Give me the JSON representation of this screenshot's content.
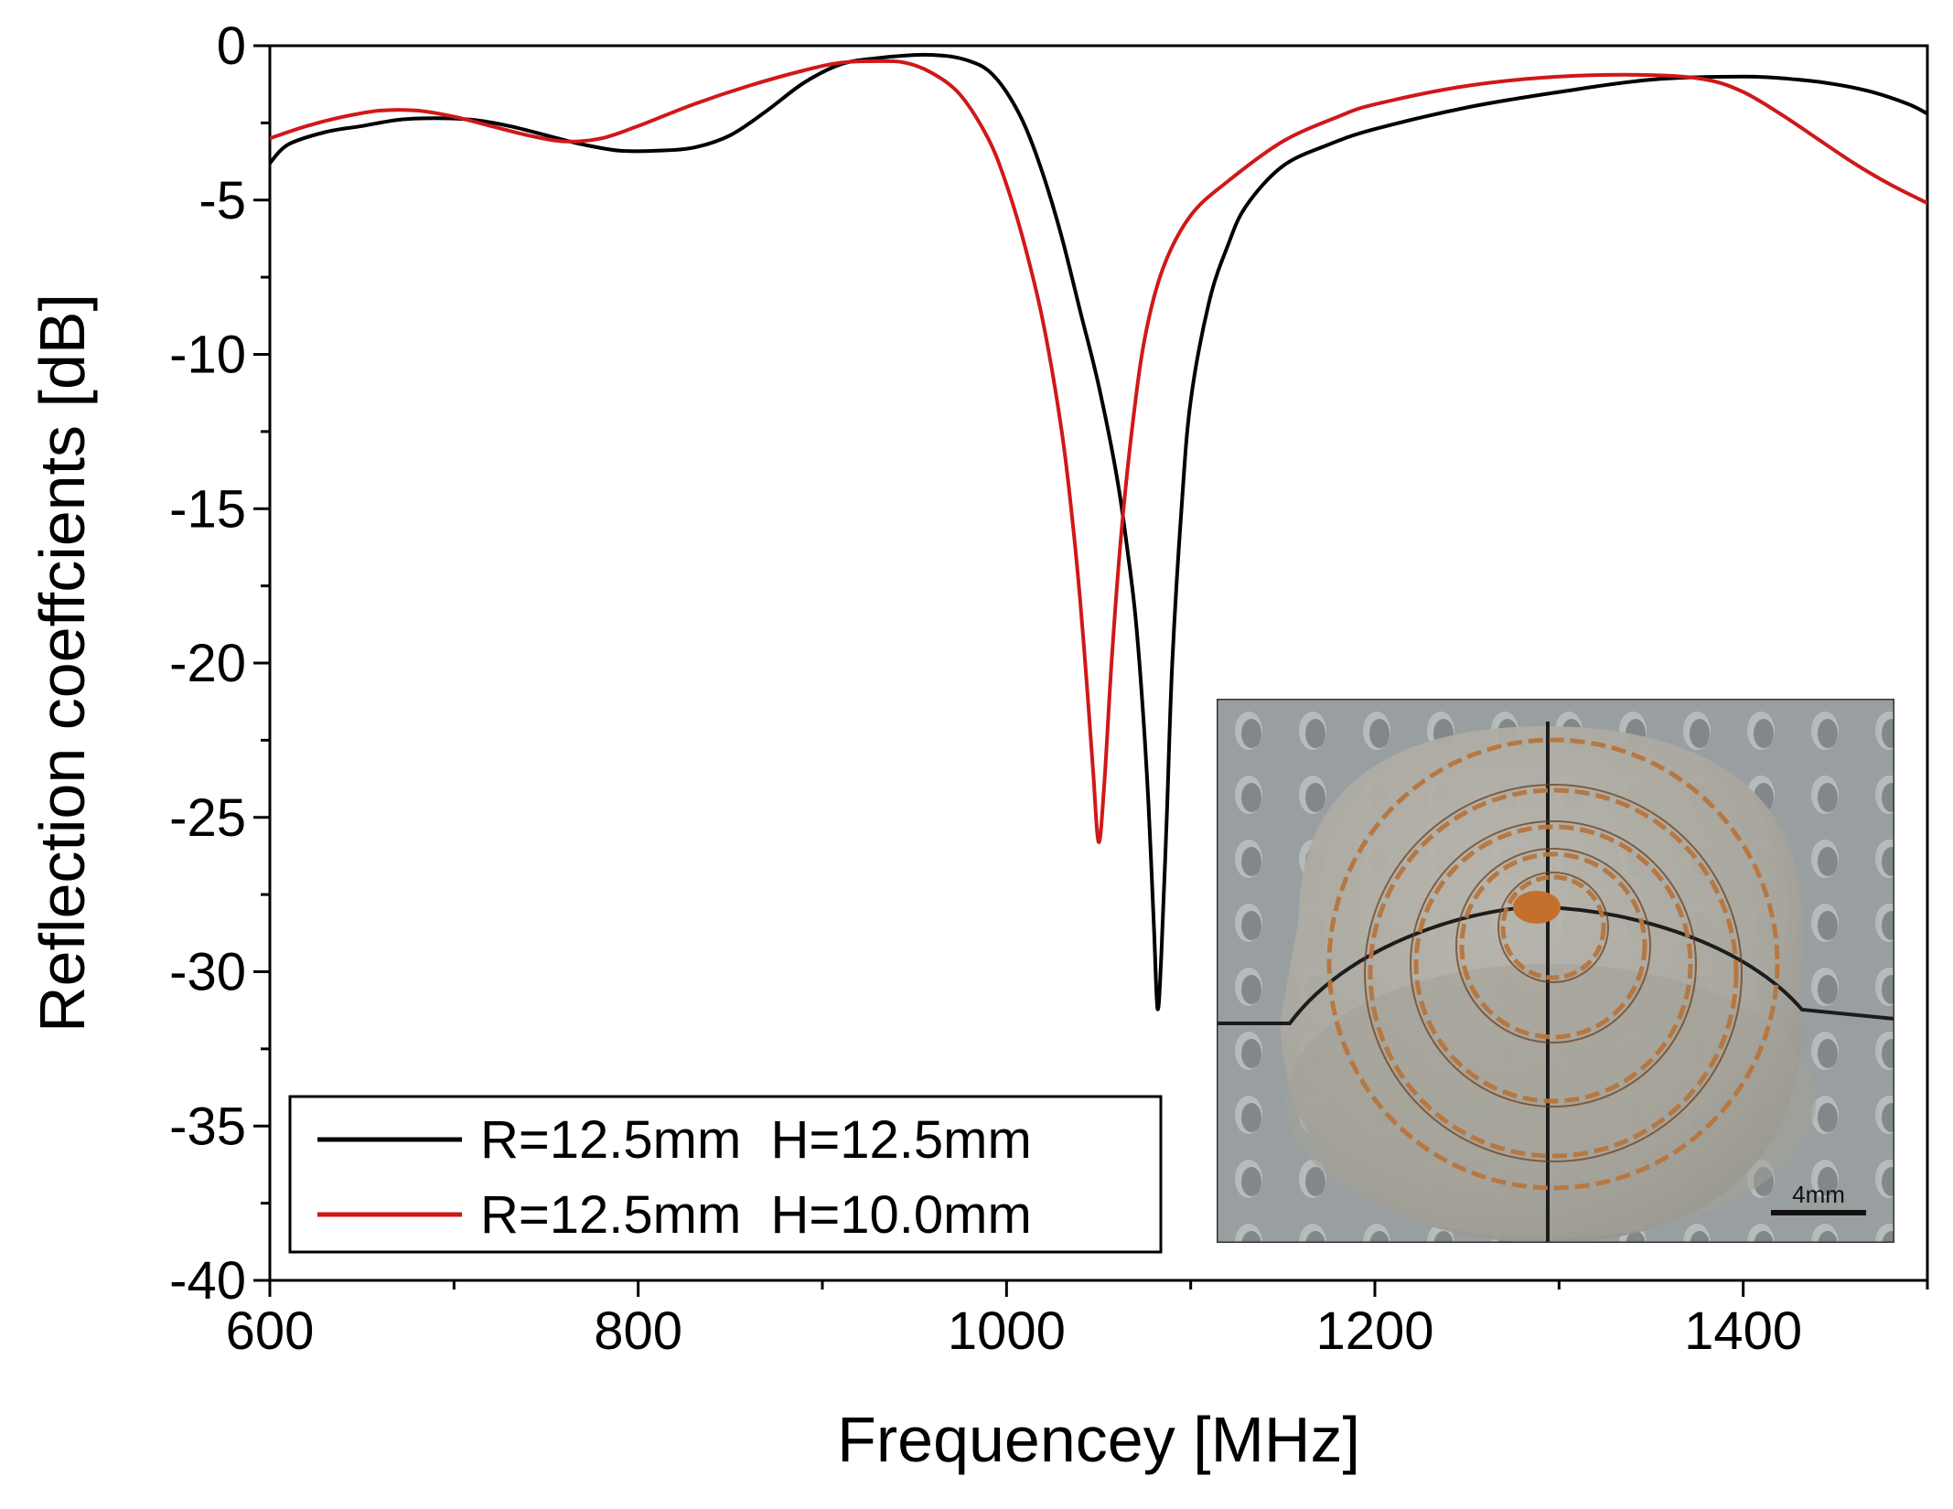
{
  "chart_data": {
    "type": "line",
    "title": "",
    "xlabel": "Frequencey [MHz]",
    "ylabel": "Reflection coeffcients [dB]",
    "xlim": [
      600,
      1500
    ],
    "ylim": [
      -40,
      0
    ],
    "xticks": [
      600,
      800,
      1000,
      1200,
      1400
    ],
    "yticks": [
      0,
      -5,
      -10,
      -15,
      -20,
      -25,
      -30,
      -35,
      -40
    ],
    "x_minor_step": 100,
    "y_minor_step": 2.5,
    "grid": false,
    "legend_position": "bottom-left",
    "series": [
      {
        "name": "R=12.5mm  H=12.5mm",
        "color": "#000000",
        "points": [
          [
            600,
            -3.8
          ],
          [
            610,
            -3.2
          ],
          [
            630,
            -2.8
          ],
          [
            650,
            -2.6
          ],
          [
            670,
            -2.4
          ],
          [
            690,
            -2.35
          ],
          [
            710,
            -2.4
          ],
          [
            730,
            -2.6
          ],
          [
            750,
            -2.9
          ],
          [
            770,
            -3.2
          ],
          [
            790,
            -3.4
          ],
          [
            810,
            -3.4
          ],
          [
            830,
            -3.3
          ],
          [
            850,
            -2.9
          ],
          [
            870,
            -2.1
          ],
          [
            890,
            -1.2
          ],
          [
            910,
            -0.6
          ],
          [
            930,
            -0.4
          ],
          [
            950,
            -0.3
          ],
          [
            960,
            -0.3
          ],
          [
            970,
            -0.35
          ],
          [
            980,
            -0.5
          ],
          [
            990,
            -0.8
          ],
          [
            1000,
            -1.5
          ],
          [
            1010,
            -2.6
          ],
          [
            1020,
            -4.2
          ],
          [
            1030,
            -6.2
          ],
          [
            1040,
            -8.6
          ],
          [
            1050,
            -11.0
          ],
          [
            1060,
            -14.0
          ],
          [
            1066,
            -16.5
          ],
          [
            1070,
            -18.5
          ],
          [
            1074,
            -21.5
          ],
          [
            1077,
            -24.5
          ],
          [
            1080,
            -28.5
          ],
          [
            1082,
            -31.2
          ],
          [
            1084,
            -29.5
          ],
          [
            1087,
            -25.0
          ],
          [
            1090,
            -20.0
          ],
          [
            1095,
            -15.0
          ],
          [
            1100,
            -11.5
          ],
          [
            1110,
            -8.3
          ],
          [
            1120,
            -6.5
          ],
          [
            1130,
            -5.2
          ],
          [
            1150,
            -3.9
          ],
          [
            1175,
            -3.2
          ],
          [
            1200,
            -2.7
          ],
          [
            1250,
            -2.0
          ],
          [
            1300,
            -1.5
          ],
          [
            1350,
            -1.1
          ],
          [
            1400,
            -1.0
          ],
          [
            1430,
            -1.1
          ],
          [
            1450,
            -1.25
          ],
          [
            1470,
            -1.5
          ],
          [
            1490,
            -1.9
          ],
          [
            1500,
            -2.2
          ]
        ]
      },
      {
        "name": "R=12.5mm  H=10.0mm",
        "color": "#d01818",
        "points": [
          [
            600,
            -3.0
          ],
          [
            620,
            -2.6
          ],
          [
            640,
            -2.3
          ],
          [
            660,
            -2.1
          ],
          [
            680,
            -2.1
          ],
          [
            700,
            -2.3
          ],
          [
            720,
            -2.6
          ],
          [
            740,
            -2.9
          ],
          [
            760,
            -3.1
          ],
          [
            780,
            -3.0
          ],
          [
            800,
            -2.6
          ],
          [
            830,
            -1.9
          ],
          [
            860,
            -1.3
          ],
          [
            890,
            -0.8
          ],
          [
            910,
            -0.55
          ],
          [
            930,
            -0.5
          ],
          [
            945,
            -0.55
          ],
          [
            960,
            -0.9
          ],
          [
            975,
            -1.6
          ],
          [
            990,
            -3.0
          ],
          [
            1000,
            -4.5
          ],
          [
            1010,
            -6.5
          ],
          [
            1020,
            -9.0
          ],
          [
            1030,
            -12.5
          ],
          [
            1036,
            -15.5
          ],
          [
            1040,
            -18.0
          ],
          [
            1044,
            -21.0
          ],
          [
            1047,
            -23.5
          ],
          [
            1050,
            -25.8
          ],
          [
            1053,
            -24.0
          ],
          [
            1057,
            -20.0
          ],
          [
            1062,
            -16.0
          ],
          [
            1068,
            -12.5
          ],
          [
            1075,
            -9.5
          ],
          [
            1085,
            -7.2
          ],
          [
            1100,
            -5.5
          ],
          [
            1120,
            -4.4
          ],
          [
            1150,
            -3.1
          ],
          [
            1180,
            -2.3
          ],
          [
            1200,
            -1.9
          ],
          [
            1250,
            -1.3
          ],
          [
            1300,
            -1.0
          ],
          [
            1350,
            -0.95
          ],
          [
            1380,
            -1.1
          ],
          [
            1400,
            -1.5
          ],
          [
            1420,
            -2.2
          ],
          [
            1440,
            -3.0
          ],
          [
            1460,
            -3.8
          ],
          [
            1480,
            -4.5
          ],
          [
            1500,
            -5.1
          ]
        ]
      }
    ]
  },
  "inset": {
    "scale_bar_label": "4mm"
  }
}
